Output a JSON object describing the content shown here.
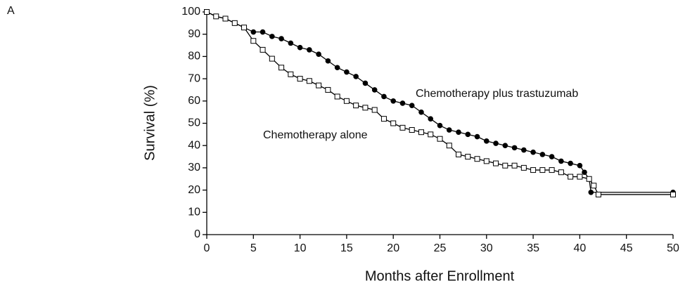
{
  "chart_data": {
    "type": "line",
    "panel_label": "A",
    "x_label": "Months after Enrollment",
    "y_label": "Survival (%)",
    "xlim": [
      0,
      50
    ],
    "ylim": [
      0,
      100
    ],
    "xticks": [
      0,
      5,
      10,
      15,
      20,
      25,
      30,
      35,
      40,
      45,
      50
    ],
    "yticks": [
      0,
      10,
      20,
      30,
      40,
      50,
      60,
      70,
      80,
      90,
      100
    ],
    "grid": false,
    "series": [
      {
        "name": "Chemotherapy plus trastuzumab",
        "color": "#000000",
        "marker": "filled-circle",
        "x": [
          0,
          1,
          2,
          3,
          4,
          5,
          6,
          7,
          8,
          9,
          10,
          11,
          12,
          13,
          14,
          15,
          16,
          17,
          18,
          19,
          20,
          21,
          22,
          23,
          24,
          25,
          26,
          27,
          28,
          29,
          30,
          31,
          32,
          33,
          34,
          35,
          36,
          37,
          38,
          39,
          40,
          40.5,
          41,
          41.2,
          50
        ],
        "values": [
          100,
          98,
          97,
          95,
          93,
          91,
          91,
          89,
          88,
          86,
          84,
          83,
          81,
          78,
          75,
          73,
          71,
          68,
          65,
          62,
          60,
          59,
          58,
          55,
          52,
          49,
          47,
          46,
          45,
          44,
          42,
          41,
          40,
          39,
          38,
          37,
          36,
          35,
          33,
          32,
          31,
          28,
          25,
          19,
          19
        ]
      },
      {
        "name": "Chemotherapy alone",
        "color": "#000000",
        "marker": "open-square",
        "x": [
          0,
          1,
          2,
          3,
          4,
          5,
          6,
          7,
          8,
          9,
          10,
          11,
          12,
          13,
          14,
          15,
          16,
          17,
          18,
          19,
          20,
          21,
          22,
          23,
          24,
          25,
          26,
          27,
          28,
          29,
          30,
          31,
          32,
          33,
          34,
          35,
          36,
          37,
          38,
          39,
          40,
          41,
          41.5,
          42,
          50
        ],
        "values": [
          100,
          98,
          97,
          95,
          93,
          87,
          83,
          79,
          75,
          72,
          70,
          69,
          67,
          65,
          62,
          60,
          58,
          57,
          56,
          52,
          50,
          48,
          47,
          46,
          45,
          43,
          40,
          36,
          35,
          34,
          33,
          32,
          31,
          31,
          30,
          29,
          29,
          29,
          28,
          26,
          26,
          25,
          22,
          18,
          18
        ]
      }
    ]
  }
}
